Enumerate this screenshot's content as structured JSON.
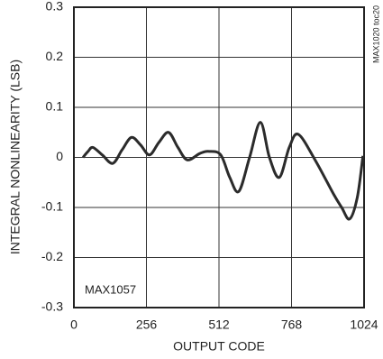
{
  "chart_data": {
    "type": "line",
    "ylabel": "INTEGRAL NONLINEARITY (LSB)",
    "xlabel": "OUTPUT CODE",
    "annotations": [
      "MAX1057",
      "MAX1020 toc20"
    ],
    "x": [
      32,
      50,
      67,
      100,
      137,
      170,
      203,
      235,
      267,
      300,
      334,
      367,
      400,
      445,
      477,
      518,
      550,
      582,
      620,
      658,
      690,
      725,
      760,
      792,
      852,
      916,
      945,
      973,
      1000,
      1020
    ],
    "series": [
      {
        "name": "INL",
        "color": "#2b2b2b",
        "values": [
          0,
          0.012,
          0.02,
          0.005,
          -0.012,
          0.015,
          0.04,
          0.025,
          0.005,
          0.03,
          0.05,
          0.02,
          -0.005,
          0.008,
          0.012,
          0.005,
          -0.04,
          -0.068,
          0.0,
          0.07,
          0.0,
          -0.04,
          0.02,
          0.046,
          -0.006,
          -0.073,
          -0.1,
          -0.123,
          -0.08,
          0.003
        ]
      }
    ],
    "xlim": [
      0,
      1024
    ],
    "xticks": [
      0,
      256,
      512,
      768,
      1024
    ],
    "ylim": [
      -0.3,
      0.3
    ],
    "yticks": [
      0.3,
      0.2,
      0.1,
      0,
      -0.1,
      -0.2,
      -0.3
    ],
    "grid": true
  }
}
